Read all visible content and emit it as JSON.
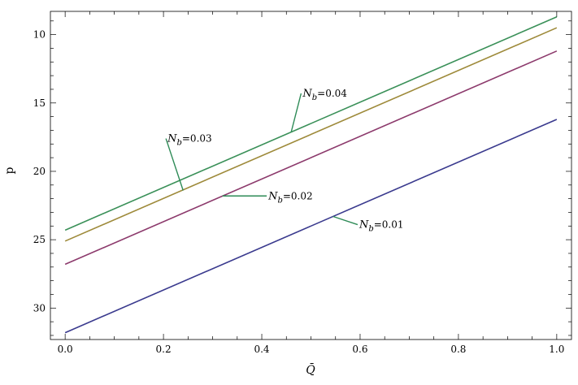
{
  "chart_data": {
    "type": "line",
    "xlabel": "Q̄",
    "ylabel": "p",
    "xlim": [
      -0.03,
      1.03
    ],
    "ylim": [
      8.3,
      32.3
    ],
    "y_inverted": true,
    "xticks": [
      0.0,
      0.2,
      0.4,
      0.6,
      0.8,
      1.0
    ],
    "xtick_labels": [
      "0.0",
      "0.2",
      "0.4",
      "0.6",
      "0.8",
      "1.0"
    ],
    "yticks": [
      10,
      15,
      20,
      25,
      30
    ],
    "ytick_labels": [
      "10",
      "15",
      "20",
      "25",
      "30"
    ],
    "grid": false,
    "legend": "none",
    "series": [
      {
        "name": "N_b=0.01",
        "label_main": "N",
        "label_sub": "b",
        "label_val": "=0.01",
        "color": "#3a3a8e",
        "x": [
          0.0,
          1.0
        ],
        "y": [
          31.8,
          16.2
        ],
        "label_at": [
          0.545,
          23.3
        ],
        "label_pos": [
          0.595,
          23.9
        ]
      },
      {
        "name": "N_b=0.02",
        "label_main": "N",
        "label_sub": "b",
        "label_val": "=0.02",
        "color": "#8c3a6c",
        "x": [
          0.0,
          1.0
        ],
        "y": [
          26.8,
          11.2
        ],
        "label_at": [
          0.32,
          21.8
        ],
        "label_pos": [
          0.41,
          21.8
        ]
      },
      {
        "name": "N_b=0.03",
        "label_main": "N",
        "label_sub": "b",
        "label_val": "=0.03",
        "color": "#9e8a3a",
        "x": [
          0.0,
          1.0
        ],
        "y": [
          25.1,
          9.5
        ],
        "label_at": [
          0.24,
          21.4
        ],
        "label_pos": [
          0.205,
          17.6
        ]
      },
      {
        "name": "N_b=0.04",
        "label_main": "N",
        "label_sub": "b",
        "label_val": "=0.04",
        "color": "#3a9058",
        "x": [
          0.0,
          1.0
        ],
        "y": [
          24.3,
          8.7
        ],
        "label_at": [
          0.46,
          17.1
        ],
        "label_pos": [
          0.48,
          14.3
        ]
      }
    ],
    "annotation_line_color": "#2e8b57"
  }
}
